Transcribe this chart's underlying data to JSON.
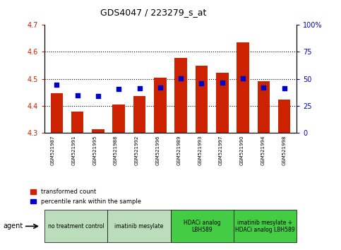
{
  "title": "GDS4047 / 223279_s_at",
  "samples": [
    "GSM521987",
    "GSM521991",
    "GSM521995",
    "GSM521988",
    "GSM521992",
    "GSM521996",
    "GSM521989",
    "GSM521993",
    "GSM521997",
    "GSM521990",
    "GSM521994",
    "GSM521998"
  ],
  "red_values": [
    4.445,
    4.378,
    4.313,
    4.405,
    4.435,
    4.503,
    4.578,
    4.548,
    4.522,
    4.635,
    4.49,
    4.422
  ],
  "blue_values": [
    4.478,
    4.438,
    4.435,
    4.462,
    4.465,
    4.468,
    4.502,
    4.482,
    4.485,
    4.502,
    4.468,
    4.465
  ],
  "y_min": 4.3,
  "y_max": 4.7,
  "y_left_ticks": [
    4.3,
    4.4,
    4.5,
    4.6,
    4.7
  ],
  "y_right_ticks": [
    0,
    25,
    50,
    75,
    100
  ],
  "y_right_labels": [
    "0",
    "25",
    "50",
    "75",
    "100%"
  ],
  "bar_color": "#cc2200",
  "dot_color": "#0000cc",
  "groups": [
    {
      "label": "no treatment control",
      "start": 0,
      "end": 3,
      "color": "#bbddbb"
    },
    {
      "label": "imatinib mesylate",
      "start": 3,
      "end": 6,
      "color": "#bbddbb"
    },
    {
      "label": "HDACi analog\nLBH589",
      "start": 6,
      "end": 9,
      "color": "#44cc44"
    },
    {
      "label": "imatinib mesylate +\nHDACi analog LBH589",
      "start": 9,
      "end": 12,
      "color": "#44cc44"
    }
  ],
  "agent_label": "agent",
  "legend_red": "transformed count",
  "legend_blue": "percentile rank within the sample",
  "label_color_left": "#cc2200",
  "label_color_right": "#0000cc",
  "grid_dotted_color": "#000000"
}
